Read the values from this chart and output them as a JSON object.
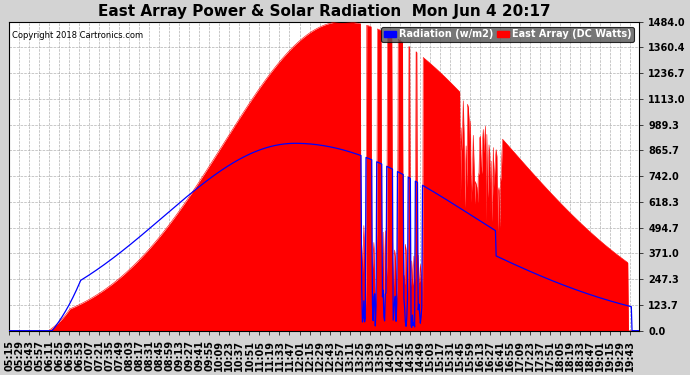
{
  "title": "East Array Power & Solar Radiation  Mon Jun 4 20:17",
  "copyright": "Copyright 2018 Cartronics.com",
  "legend_radiation": "Radiation (w/m2)",
  "legend_east_array": "East Array (DC Watts)",
  "yticks": [
    0.0,
    123.7,
    247.3,
    371.0,
    494.7,
    618.3,
    742.0,
    865.7,
    989.3,
    1113.0,
    1236.7,
    1360.4,
    1484.0
  ],
  "ymax": 1484.0,
  "ymin": 0.0,
  "background_color": "#d3d3d3",
  "plot_bg_color": "#ffffff",
  "red_fill_color": "#ff0000",
  "blue_line_color": "#0000ff",
  "grid_color": "#aaaaaa",
  "title_fontsize": 11,
  "tick_fontsize": 7,
  "legend_fontsize": 7
}
